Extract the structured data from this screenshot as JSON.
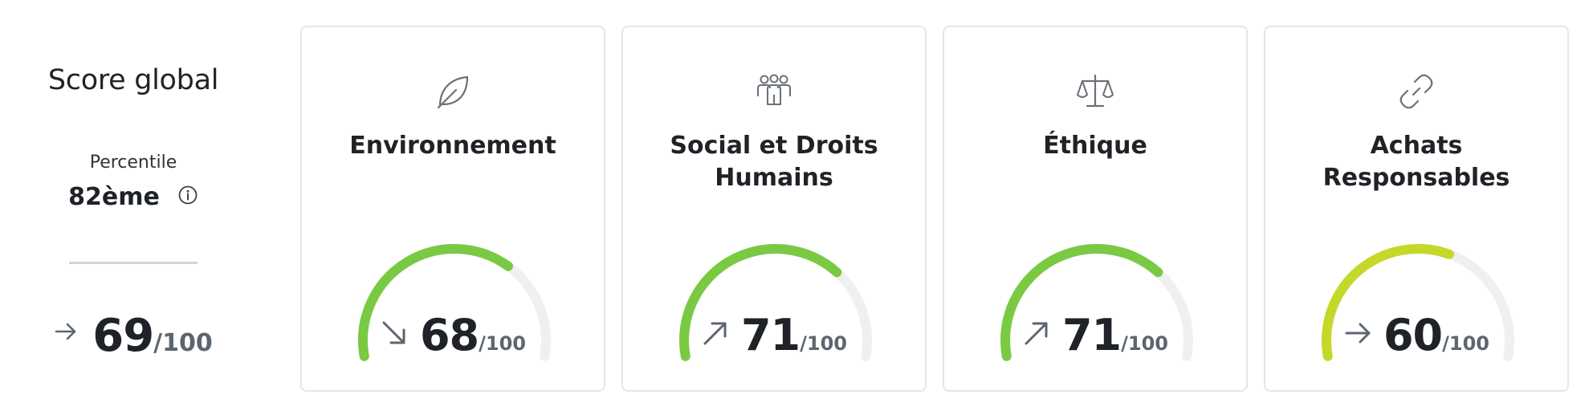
{
  "summary": {
    "title": "Score global",
    "percentile_label": "Percentile",
    "percentile_value": "82ème",
    "info_icon": "info-icon",
    "trend_icon": "arrow-right-icon",
    "score": "69",
    "score_max": "/100"
  },
  "cards": [
    {
      "title": "Environnement",
      "icon": "leaf-icon",
      "trend_icon": "arrow-down-right-icon",
      "score": "68",
      "score_max": "/100",
      "value": 68,
      "color": "#7ac943"
    },
    {
      "title": "Social et Droits Humains",
      "icon": "people-icon",
      "trend_icon": "arrow-up-right-icon",
      "score": "71",
      "score_max": "/100",
      "value": 71,
      "color": "#7ac943"
    },
    {
      "title": "Éthique",
      "icon": "scales-icon",
      "trend_icon": "arrow-up-right-icon",
      "score": "71",
      "score_max": "/100",
      "value": 71,
      "color": "#7ac943"
    },
    {
      "title": "Achats Responsables",
      "icon": "link-icon",
      "trend_icon": "arrow-right-icon",
      "score": "60",
      "score_max": "/100",
      "value": 60,
      "color": "#c5d82a"
    }
  ],
  "colors": {
    "gauge_track": "#eef0f2",
    "icon": "#6b7178",
    "trend": "#5c6670",
    "border": "#e3e6ea"
  }
}
